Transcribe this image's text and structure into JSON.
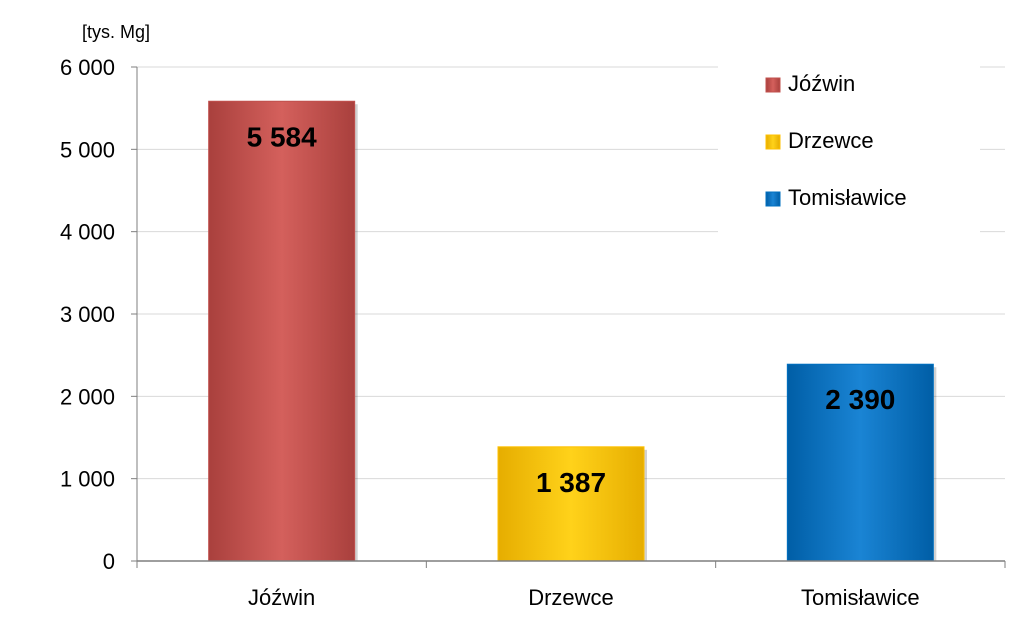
{
  "chart_data": {
    "type": "bar",
    "unit_label": "[tys. Mg]",
    "categories": [
      "Jóźwin",
      "Drzewce",
      "Tomisławice"
    ],
    "values": [
      5584,
      1387,
      2390
    ],
    "value_labels": [
      "5 584",
      "1 387",
      "2 390"
    ],
    "colors": [
      "#c0504d",
      "#ffc000",
      "#0070c0"
    ],
    "ylim": [
      0,
      6000
    ],
    "yticks": [
      0,
      1000,
      2000,
      3000,
      4000,
      5000,
      6000
    ],
    "ytick_labels": [
      "0",
      "1 000",
      "2 000",
      "3 000",
      "4 000",
      "5 000",
      "6 000"
    ],
    "grid": true,
    "legend": {
      "position": "top-right",
      "entries": [
        "Jóźwin",
        "Drzewce",
        "Tomisławice"
      ]
    }
  }
}
